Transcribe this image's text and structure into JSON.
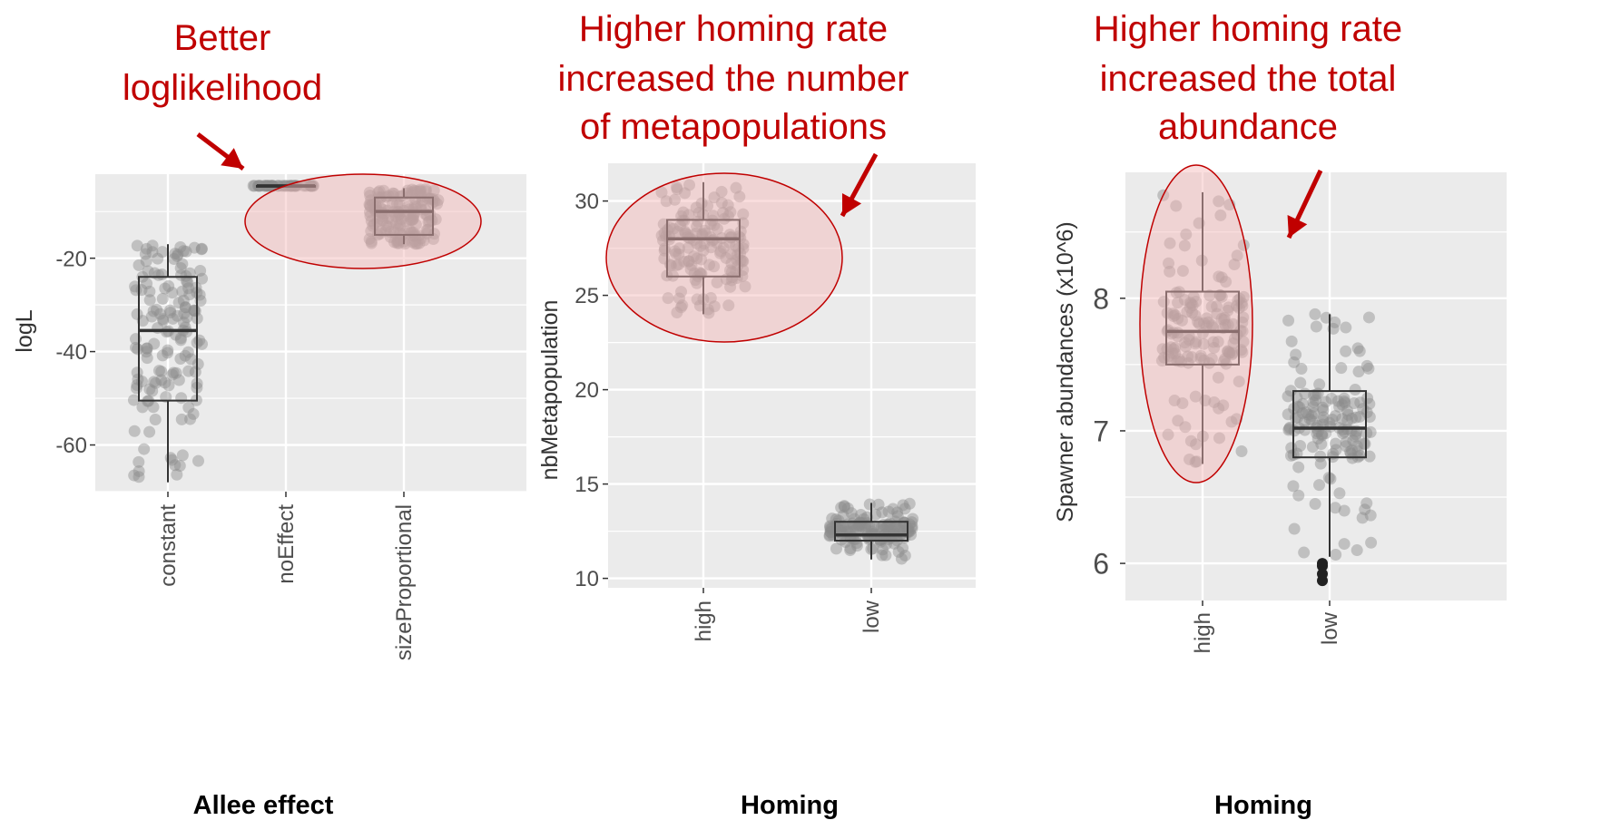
{
  "colors": {
    "panel": "#ebebeb",
    "grid": "#ffffff",
    "point": "#8c8c8c",
    "box": "#333333",
    "outlier": "#222222",
    "annotation": "#c00000",
    "ellipse_fill": "#f4b6b6"
  },
  "chart_data": [
    {
      "type": "box",
      "title": "",
      "xlabel": "Allee effect",
      "ylabel": "logL",
      "ylim": [
        -70,
        -2
      ],
      "yticks": [
        -20,
        -40,
        -60
      ],
      "categories": [
        "constant",
        "noEffect",
        "sizeProportional"
      ],
      "boxes": [
        {
          "category": "constant",
          "min": -68,
          "q1": -50.5,
          "median": -35.5,
          "q3": -24,
          "max": -17
        },
        {
          "category": "noEffect",
          "min": -4.5,
          "q1": -4.5,
          "median": -4.5,
          "q3": -4.5,
          "max": -4.5
        },
        {
          "category": "sizeProportional",
          "min": -17,
          "q1": -15,
          "median": -10,
          "q3": -7,
          "max": -5
        }
      ],
      "annotation": {
        "lines": [
          "Better",
          "loglikelihood"
        ],
        "highlight": [
          "noEffect",
          "sizeProportional"
        ]
      }
    },
    {
      "type": "box",
      "title": "",
      "xlabel": "Homing",
      "ylabel": "nbMetapopulation",
      "ylim": [
        9.5,
        32
      ],
      "yticks": [
        10,
        15,
        20,
        25,
        30
      ],
      "categories": [
        "high",
        "low"
      ],
      "boxes": [
        {
          "category": "high",
          "min": 24,
          "q1": 26,
          "median": 28,
          "q3": 29,
          "max": 31
        },
        {
          "category": "low",
          "min": 11,
          "q1": 12,
          "median": 12.3,
          "q3": 13,
          "max": 14
        }
      ],
      "annotation": {
        "lines": [
          "Higher homing rate",
          "increased the number",
          "of metapopulations"
        ],
        "highlight": [
          "high"
        ]
      }
    },
    {
      "type": "box",
      "title": "",
      "xlabel": "Homing",
      "ylabel": "Spawner abundances (x10^6)",
      "ylim": [
        5.72,
        8.95
      ],
      "yticks": [
        6,
        7,
        8
      ],
      "categories": [
        "high",
        "low"
      ],
      "boxes": [
        {
          "category": "high",
          "min": 6.75,
          "q1": 7.5,
          "median": 7.75,
          "q3": 8.05,
          "max": 8.8,
          "outliers": []
        },
        {
          "category": "low",
          "min": 6.05,
          "q1": 6.8,
          "median": 7.02,
          "q3": 7.3,
          "max": 7.88,
          "outliers": [
            5.87,
            5.92,
            5.98,
            6.0
          ]
        }
      ],
      "annotation": {
        "lines": [
          "Higher homing rate",
          "increased the total",
          "abundance"
        ],
        "highlight": [
          "high"
        ]
      }
    }
  ]
}
